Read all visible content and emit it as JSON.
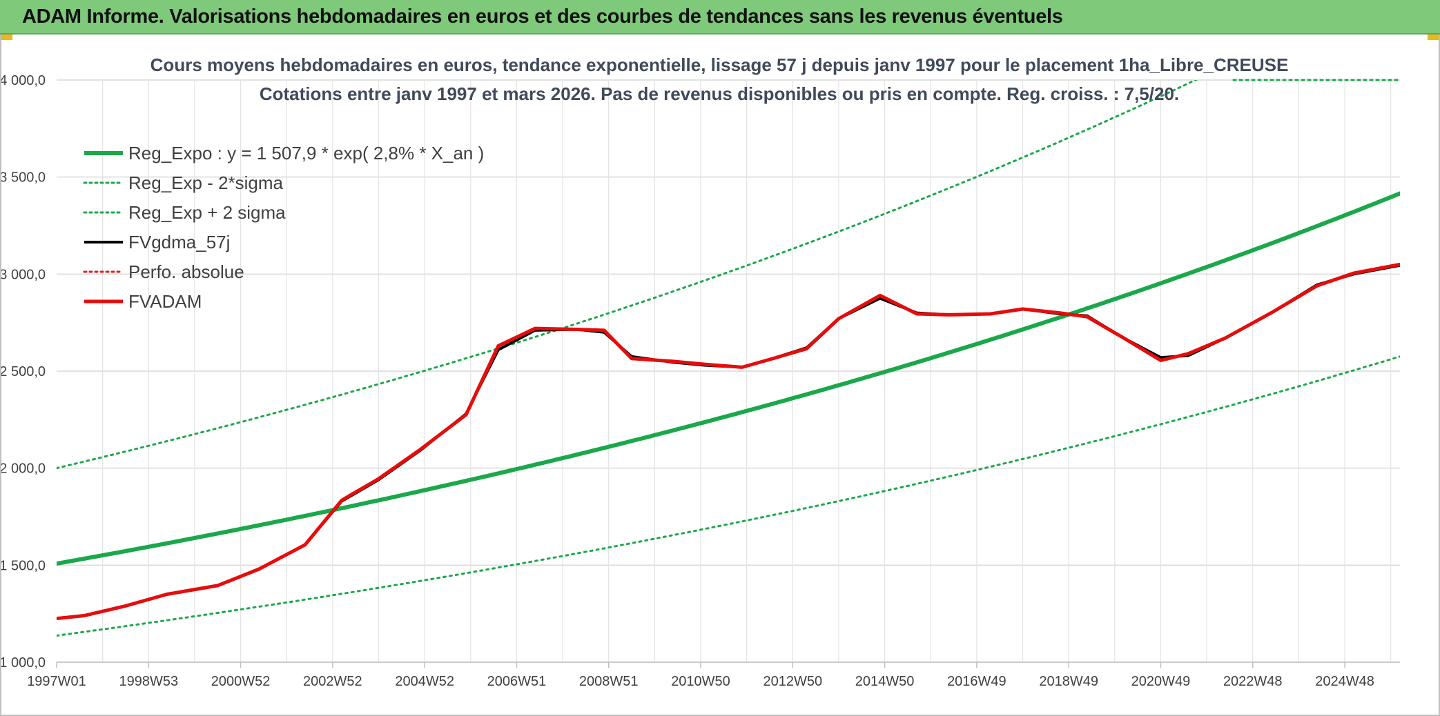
{
  "header": {
    "title": "ADAM Informe. Valorisations hebdomadaires en euros et des courbes de tendances sans les revenus éventuels"
  },
  "chart_data": {
    "type": "line",
    "title": "Cours moyens hebdomadaires en euros, tendance exponentielle, lissage 57 j depuis janv 1997 pour le placement 1ha_Libre_CREUSE",
    "subtitle": "Cotations entre janv 1997 et mars 2026. Pas de revenus disponibles ou pris en compte. Reg. croiss. : 7,5/20.",
    "ylim": [
      1000,
      4000
    ],
    "xlim": [
      1997.0,
      2026.2
    ],
    "y_ticks": [
      {
        "value": 1000,
        "label": "1 000,0"
      },
      {
        "value": 1500,
        "label": "1 500,0"
      },
      {
        "value": 2000,
        "label": "2 000,0"
      },
      {
        "value": 2500,
        "label": "2 500,0"
      },
      {
        "value": 3000,
        "label": "3 000,0"
      },
      {
        "value": 3500,
        "label": "3 500,0"
      },
      {
        "value": 4000,
        "label": "4 000,0"
      }
    ],
    "x_ticks": [
      {
        "x": 1997.0,
        "label": "1997W01"
      },
      {
        "x": 1999.0,
        "label": "1998W53"
      },
      {
        "x": 2001.0,
        "label": "2000W52"
      },
      {
        "x": 2003.0,
        "label": "2002W52"
      },
      {
        "x": 2005.0,
        "label": "2004W52"
      },
      {
        "x": 2007.0,
        "label": "2006W51"
      },
      {
        "x": 2009.0,
        "label": "2008W51"
      },
      {
        "x": 2011.0,
        "label": "2010W50"
      },
      {
        "x": 2013.0,
        "label": "2012W50"
      },
      {
        "x": 2015.0,
        "label": "2014W50"
      },
      {
        "x": 2017.0,
        "label": "2016W49"
      },
      {
        "x": 2019.0,
        "label": "2018W49"
      },
      {
        "x": 2021.0,
        "label": "2020W49"
      },
      {
        "x": 2023.0,
        "label": "2022W48"
      },
      {
        "x": 2025.0,
        "label": "2024W48"
      }
    ],
    "grid": true,
    "legend_position": "top-left",
    "series": [
      {
        "name": "Reg_Expo : y = 1 507,9 * exp( 2,8% *  X_an )",
        "kind": "expo",
        "a": 1507.9,
        "r": 0.028,
        "color": "#1aa84a",
        "style": "solid"
      },
      {
        "name": "Reg_Exp - 2*sigma",
        "kind": "expo",
        "a": 1137,
        "r": 0.028,
        "color": "#1aa84a",
        "style": "dotted"
      },
      {
        "name": "Reg_Exp + 2 sigma",
        "kind": "expo",
        "a": 2000,
        "r": 0.028,
        "color": "#1aa84a",
        "style": "dotted"
      },
      {
        "name": "FVgdma_57j",
        "kind": "points",
        "color": "#000000",
        "style": "solid",
        "x": [
          1997.0,
          1997.6,
          1998.5,
          1999.4,
          2000.5,
          2001.4,
          2002.4,
          2003.2,
          2004.0,
          2004.9,
          2005.9,
          2006.6,
          2007.4,
          2008.3,
          2008.9,
          2009.5,
          2010.4,
          2011.1,
          2011.9,
          2012.5,
          2013.3,
          2014.0,
          2014.9,
          2015.7,
          2016.4,
          2017.3,
          2018.0,
          2018.8,
          2019.4,
          2020.2,
          2021.0,
          2021.6,
          2022.4,
          2023.4,
          2024.4,
          2025.2,
          2026.2
        ],
        "y": [
          1225,
          1240,
          1290,
          1350,
          1395,
          1480,
          1605,
          1830,
          1940,
          2090,
          2280,
          2610,
          2710,
          2715,
          2700,
          2575,
          2545,
          2530,
          2520,
          2560,
          2620,
          2770,
          2875,
          2800,
          2790,
          2795,
          2820,
          2795,
          2785,
          2670,
          2570,
          2580,
          2670,
          2800,
          2945,
          3000,
          3045
        ]
      },
      {
        "name": "Perfo. absolue",
        "kind": "none",
        "color": "#e31a1c",
        "style": "dotted"
      },
      {
        "name": "FVADAM",
        "kind": "points",
        "color": "#e60c0c",
        "style": "solid",
        "x": [
          1997.0,
          1997.6,
          1998.5,
          1999.4,
          2000.5,
          2001.4,
          2002.4,
          2003.2,
          2004.0,
          2004.9,
          2005.9,
          2006.6,
          2007.4,
          2008.3,
          2008.9,
          2009.5,
          2010.4,
          2011.1,
          2011.9,
          2012.5,
          2013.3,
          2014.0,
          2014.9,
          2015.7,
          2016.4,
          2017.3,
          2018.0,
          2018.8,
          2019.4,
          2020.2,
          2021.0,
          2021.6,
          2022.4,
          2023.4,
          2024.4,
          2025.2,
          2026.2
        ],
        "y": [
          1225,
          1240,
          1290,
          1350,
          1395,
          1480,
          1605,
          1835,
          1945,
          2095,
          2275,
          2630,
          2720,
          2715,
          2710,
          2565,
          2550,
          2535,
          2520,
          2560,
          2615,
          2770,
          2890,
          2795,
          2790,
          2795,
          2820,
          2800,
          2780,
          2670,
          2555,
          2590,
          2670,
          2800,
          2940,
          3005,
          3050
        ]
      }
    ]
  }
}
